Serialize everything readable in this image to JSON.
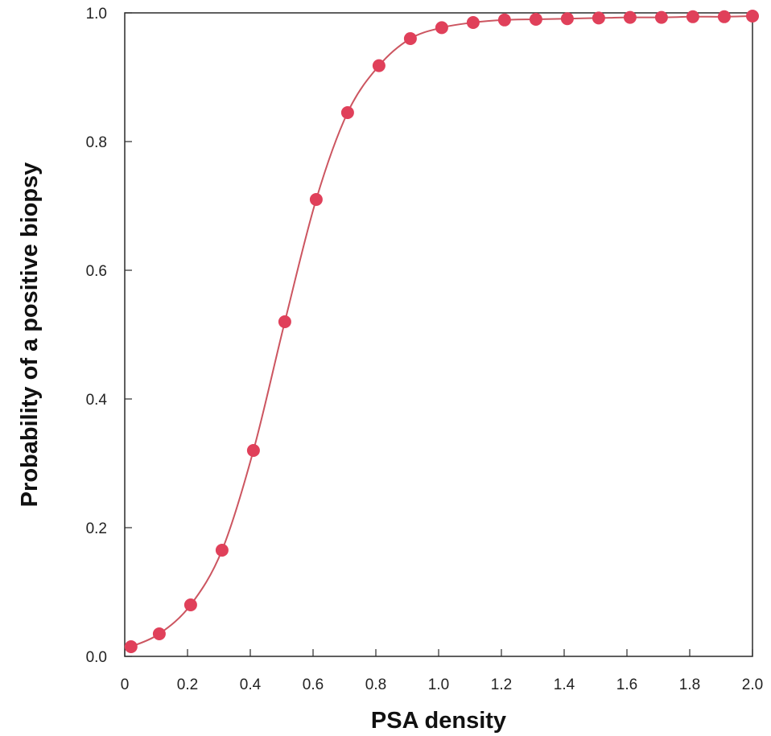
{
  "chart_data": {
    "type": "line",
    "title": "",
    "xlabel": "PSA density",
    "ylabel": "Probability of a positive biopsy",
    "xlim": [
      0,
      2.0
    ],
    "ylim": [
      0,
      1.0
    ],
    "xticks": [
      "0",
      "0.2",
      "0.4",
      "0.6",
      "0.8",
      "1.0",
      "1.2",
      "1.4",
      "1.6",
      "1.8",
      "2.0"
    ],
    "yticks": [
      "0.0",
      "0.2",
      "0.4",
      "0.6",
      "0.8",
      "1.0"
    ],
    "grid": false,
    "legend": "none",
    "series": [
      {
        "marker": "circle",
        "color": "#e0405a",
        "x": [
          0.02,
          0.11,
          0.21,
          0.31,
          0.41,
          0.51,
          0.61,
          0.71,
          0.81,
          0.91,
          1.01,
          1.11,
          1.21,
          1.31,
          1.41,
          1.51,
          1.61,
          1.71,
          1.81,
          1.91,
          2.0
        ],
        "y": [
          0.015,
          0.035,
          0.08,
          0.165,
          0.32,
          0.52,
          0.71,
          0.845,
          0.918,
          0.96,
          0.977,
          0.985,
          0.989,
          0.99,
          0.991,
          0.992,
          0.993,
          0.993,
          0.994,
          0.994,
          0.995
        ]
      }
    ],
    "line_color": "#cc5560"
  }
}
